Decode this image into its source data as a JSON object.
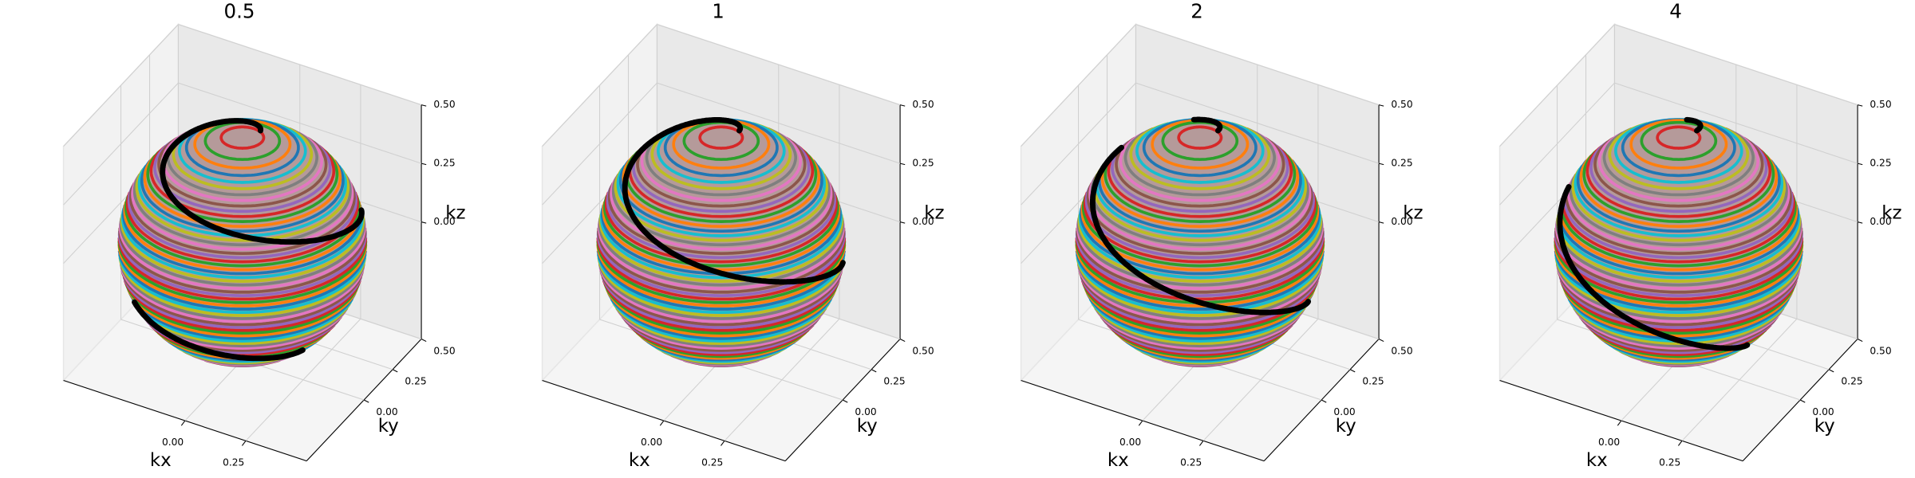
{
  "chart_data": [
    {
      "type": "sphere3d",
      "title": "0.5",
      "xlabel": "kx",
      "ylabel": "ky",
      "zlabel": "kz",
      "xlim": [
        -0.5,
        0.5
      ],
      "ylim": [
        -0.5,
        0.5
      ],
      "zlim": [
        -0.5,
        0.5
      ],
      "xticks": [
        {
          "value": 0,
          "label": "0.00"
        },
        {
          "value": 0.25,
          "label": "0.25"
        }
      ],
      "yticks": [
        {
          "value": 0,
          "label": "0.00"
        },
        {
          "value": 0.25,
          "label": "0.25"
        },
        {
          "value": 0.5,
          "label": "0.50"
        }
      ],
      "zticks": [
        {
          "value": 0,
          "label": "0.00"
        },
        {
          "value": 0.25,
          "label": "0.25"
        },
        {
          "value": 0.5,
          "label": "0.50"
        }
      ]
    },
    {
      "type": "sphere3d",
      "title": "1",
      "xlabel": "kx",
      "ylabel": "ky",
      "zlabel": "kz",
      "xlim": [
        -0.5,
        0.5
      ],
      "ylim": [
        -0.5,
        0.5
      ],
      "zlim": [
        -0.5,
        0.5
      ],
      "xticks": [
        {
          "value": 0,
          "label": "0.00"
        },
        {
          "value": 0.25,
          "label": "0.25"
        }
      ],
      "yticks": [
        {
          "value": 0,
          "label": "0.00"
        },
        {
          "value": 0.25,
          "label": "0.25"
        },
        {
          "value": 0.5,
          "label": "0.50"
        }
      ],
      "zticks": [
        {
          "value": 0,
          "label": "0.00"
        },
        {
          "value": 0.25,
          "label": "0.25"
        },
        {
          "value": 0.5,
          "label": "0.50"
        }
      ]
    },
    {
      "type": "sphere3d",
      "title": "2",
      "xlabel": "kx",
      "ylabel": "ky",
      "zlabel": "kz",
      "xlim": [
        -0.5,
        0.5
      ],
      "ylim": [
        -0.5,
        0.5
      ],
      "zlim": [
        -0.5,
        0.5
      ],
      "xticks": [
        {
          "value": 0,
          "label": "0.00"
        },
        {
          "value": 0.25,
          "label": "0.25"
        }
      ],
      "yticks": [
        {
          "value": 0,
          "label": "0.00"
        },
        {
          "value": 0.25,
          "label": "0.25"
        },
        {
          "value": 0.5,
          "label": "0.50"
        }
      ],
      "zticks": [
        {
          "value": 0,
          "label": "0.00"
        },
        {
          "value": 0.25,
          "label": "0.25"
        },
        {
          "value": 0.5,
          "label": "0.50"
        }
      ]
    },
    {
      "type": "sphere3d",
      "title": "4",
      "xlabel": "kx",
      "ylabel": "ky",
      "zlabel": "kz",
      "xlim": [
        -0.5,
        0.5
      ],
      "ylim": [
        -0.5,
        0.5
      ],
      "zlim": [
        -0.5,
        0.5
      ],
      "xticks": [
        {
          "value": 0,
          "label": "0.00"
        },
        {
          "value": 0.25,
          "label": "0.25"
        }
      ],
      "yticks": [
        {
          "value": 0,
          "label": "0.00"
        },
        {
          "value": 0.25,
          "label": "0.25"
        },
        {
          "value": 0.5,
          "label": "0.50"
        }
      ],
      "zticks": [
        {
          "value": 0,
          "label": "0.00"
        },
        {
          "value": 0.25,
          "label": "0.25"
        },
        {
          "value": 0.5,
          "label": "0.50"
        }
      ]
    }
  ]
}
